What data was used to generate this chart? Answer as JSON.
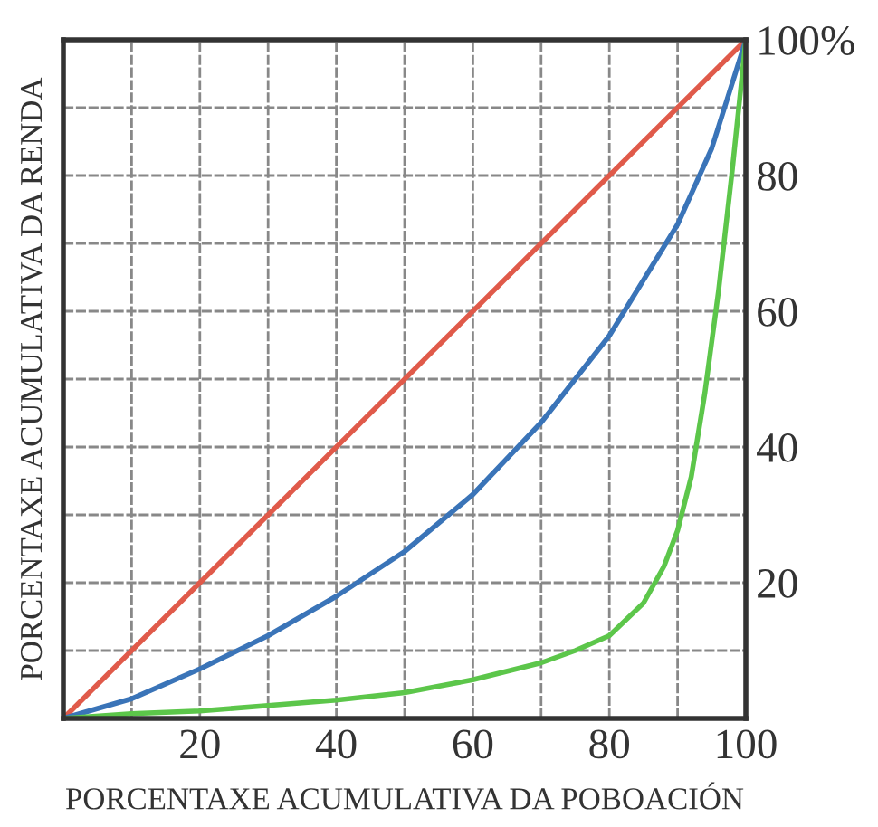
{
  "chart_data": {
    "type": "line",
    "xlabel": "PORCENTAXE ACUMULATIVA DA POBOACIÓN",
    "ylabel": "PORCENTAXE ACUMULATIVA DA RENDA",
    "series": [
      {
        "color": "#e05a4a",
        "x": [
          0,
          100
        ],
        "values": [
          0,
          100
        ]
      },
      {
        "color": "#3a74b8",
        "x": [
          0,
          10,
          20,
          30,
          40,
          50,
          60,
          70,
          80,
          90,
          95,
          100
        ],
        "values": [
          0,
          2.9,
          7.3,
          12.2,
          18,
          24.6,
          33,
          43.6,
          56.4,
          72.8,
          84,
          100
        ]
      },
      {
        "color": "#5cc64a",
        "x": [
          0,
          10,
          20,
          30,
          40,
          50,
          60,
          70,
          75,
          80,
          85,
          88,
          90,
          92,
          94,
          96,
          98,
          100
        ],
        "values": [
          0,
          0.7,
          1.1,
          1.9,
          2.7,
          3.8,
          5.7,
          8.2,
          10,
          12.2,
          17,
          22.4,
          27.7,
          35.6,
          48,
          63,
          80.7,
          100
        ]
      }
    ],
    "xlim": [
      0,
      100
    ],
    "ylim": [
      0,
      100
    ],
    "xticks": [
      {
        "value": 10,
        "label": null
      },
      20,
      {
        "value": 30,
        "label": null
      },
      40,
      {
        "value": 50,
        "label": null
      },
      60,
      {
        "value": 70,
        "label": null
      },
      80,
      {
        "value": 90,
        "label": null
      },
      100
    ],
    "yticks": [
      {
        "value": 10,
        "label": null
      },
      20,
      {
        "value": 30,
        "label": null
      },
      40,
      {
        "value": 50,
        "label": null
      },
      60,
      {
        "value": 70,
        "label": null
      },
      80,
      {
        "value": 90,
        "label": null
      },
      {
        "value": 100,
        "label": "100%"
      }
    ],
    "grid": true,
    "legend": false,
    "marker": "none",
    "line_style": "solid"
  }
}
